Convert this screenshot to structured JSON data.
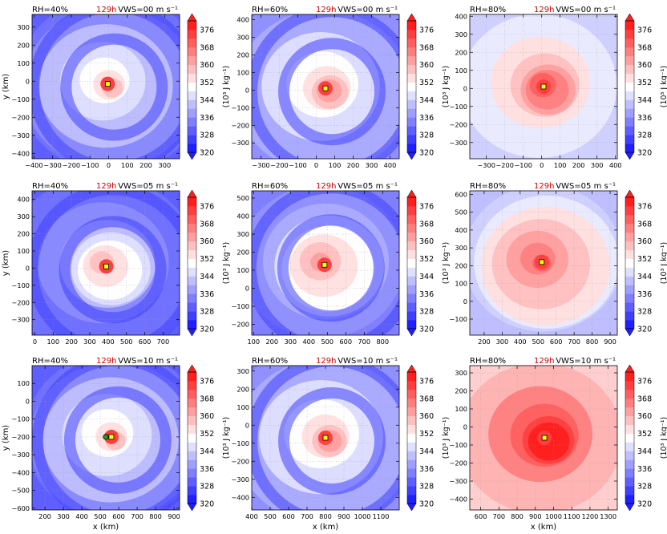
{
  "figure": {
    "time_label": "129h",
    "time_color": "#d40000",
    "colorbar": {
      "ticks": [
        "376",
        "368",
        "360",
        "352",
        "344",
        "336",
        "328",
        "320"
      ],
      "label": "(10³ J kg⁻¹)",
      "range": [
        320,
        380
      ],
      "levels": [
        320,
        324,
        328,
        332,
        336,
        340,
        344,
        348,
        352,
        356,
        360,
        364,
        368,
        372,
        376,
        380
      ]
    },
    "xlabel": "x (km)",
    "ylabel": "y (km)"
  },
  "chart_data": [
    {
      "type": "heatmap",
      "rh": "RH=40%",
      "vws": "VWS=00 m s⁻¹",
      "xlim": [
        -410,
        380
      ],
      "ylim": [
        -430,
        370
      ],
      "xticks": [
        "−400",
        "−300",
        "−200",
        "−100",
        "0",
        "100",
        "200",
        "300"
      ],
      "xtick_vals": [
        -400,
        -300,
        -200,
        -100,
        0,
        100,
        200,
        300
      ],
      "yticks": [
        "300",
        "200",
        "100",
        "0",
        "−100",
        "−200",
        "−300",
        "−400"
      ],
      "ytick_vals": [
        300,
        200,
        100,
        0,
        -100,
        -200,
        -300,
        -400
      ],
      "center": [
        -5,
        -15
      ],
      "center2": null,
      "bg": "blue"
    },
    {
      "type": "heatmap",
      "rh": "RH=60%",
      "vws": "VWS=00 m s⁻¹",
      "xlim": [
        -350,
        450
      ],
      "ylim": [
        -390,
        430
      ],
      "xticks": [
        "−300",
        "−200",
        "−100",
        "0",
        "100",
        "200",
        "300",
        "400"
      ],
      "xtick_vals": [
        -300,
        -200,
        -100,
        0,
        100,
        200,
        300,
        400
      ],
      "yticks": [
        "400",
        "300",
        "200",
        "100",
        "0",
        "−100",
        "−200",
        "−300"
      ],
      "ytick_vals": [
        400,
        300,
        200,
        100,
        0,
        -100,
        -200,
        -300
      ],
      "center": [
        50,
        10
      ],
      "center2": null,
      "bg": "mid"
    },
    {
      "type": "heatmap",
      "rh": "RH=80%",
      "vws": "VWS=00 m s⁻¹",
      "xlim": [
        -390,
        410
      ],
      "ylim": [
        -390,
        410
      ],
      "xticks": [
        "−300",
        "−200",
        "−100",
        "0",
        "100",
        "200",
        "300",
        "400"
      ],
      "xtick_vals": [
        -300,
        -200,
        -100,
        0,
        100,
        200,
        300,
        400
      ],
      "yticks": [
        "400",
        "300",
        "200",
        "100",
        "0",
        "−100",
        "−200",
        "−300"
      ],
      "ytick_vals": [
        400,
        300,
        200,
        100,
        0,
        -100,
        -200,
        -300
      ],
      "center": [
        10,
        10
      ],
      "center2": null,
      "bg": "light"
    },
    {
      "type": "heatmap",
      "rh": "RH=40%",
      "vws": "VWS=05 m s⁻¹",
      "xlim": [
        -15,
        790
      ],
      "ylim": [
        -390,
        450
      ],
      "xticks": [
        "0",
        "100",
        "200",
        "300",
        "400",
        "500",
        "600",
        "700"
      ],
      "xtick_vals": [
        0,
        100,
        200,
        300,
        400,
        500,
        600,
        700
      ],
      "yticks": [
        "400",
        "300",
        "200",
        "100",
        "0",
        "−100",
        "−200",
        "−300"
      ],
      "ytick_vals": [
        400,
        300,
        200,
        100,
        0,
        -100,
        -200,
        -300
      ],
      "center": [
        390,
        10
      ],
      "center2": null,
      "bg": "blue"
    },
    {
      "type": "heatmap",
      "rh": "RH=60%",
      "vws": "VWS=05 m s⁻¹",
      "xlim": [
        90,
        890
      ],
      "ylim": [
        -260,
        540
      ],
      "xticks": [
        "100",
        "200",
        "300",
        "400",
        "500",
        "600",
        "700",
        "800"
      ],
      "xtick_vals": [
        100,
        200,
        300,
        400,
        500,
        600,
        700,
        800
      ],
      "yticks": [
        "500",
        "400",
        "300",
        "200",
        "100",
        "0",
        "−100",
        "−200"
      ],
      "ytick_vals": [
        500,
        400,
        300,
        200,
        100,
        0,
        -100,
        -200
      ],
      "center": [
        485,
        130
      ],
      "center2": null,
      "bg": "mid"
    },
    {
      "type": "heatmap",
      "rh": "RH=80%",
      "vws": "VWS=05 m s⁻¹",
      "xlim": [
        120,
        940
      ],
      "ylim": [
        -190,
        620
      ],
      "xticks": [
        "200",
        "300",
        "400",
        "500",
        "600",
        "700",
        "800",
        "900"
      ],
      "xtick_vals": [
        200,
        300,
        400,
        500,
        600,
        700,
        800,
        900
      ],
      "yticks": [
        "600",
        "500",
        "400",
        "300",
        "200",
        "100",
        "0",
        "−100"
      ],
      "ytick_vals": [
        600,
        500,
        400,
        300,
        200,
        100,
        0,
        -100
      ],
      "center": [
        520,
        220
      ],
      "center2": null,
      "bg": "light"
    },
    {
      "type": "heatmap",
      "rh": "RH=40%",
      "vws": "VWS=10 m s⁻¹",
      "xlim": [
        130,
        930
      ],
      "ylim": [
        -610,
        200
      ],
      "xticks": [
        "200",
        "300",
        "400",
        "500",
        "600",
        "700",
        "800",
        "900"
      ],
      "xtick_vals": [
        200,
        300,
        400,
        500,
        600,
        700,
        800,
        900
      ],
      "yticks": [
        "100",
        "0",
        "−100",
        "−200",
        "−300",
        "−400",
        "−500",
        "−600"
      ],
      "ytick_vals": [
        100,
        0,
        -100,
        -200,
        -300,
        -400,
        -500,
        -600
      ],
      "center": [
        560,
        -200
      ],
      "center2": [
        530,
        -200
      ],
      "bg": "blue"
    },
    {
      "type": "heatmap",
      "rh": "RH=60%",
      "vws": "VWS=10 m s⁻¹",
      "xlim": [
        400,
        1200
      ],
      "ylim": [
        -470,
        330
      ],
      "xticks": [
        "400",
        "500",
        "600",
        "700",
        "800",
        "900",
        "1000",
        "1100"
      ],
      "xtick_vals": [
        400,
        500,
        600,
        700,
        800,
        900,
        1000,
        1100
      ],
      "yticks": [
        "300",
        "200",
        "100",
        "0",
        "−100",
        "−200",
        "−300",
        "−400"
      ],
      "ytick_vals": [
        300,
        200,
        100,
        0,
        -100,
        -200,
        -300,
        -400
      ],
      "center": [
        800,
        -70
      ],
      "center2": null,
      "bg": "mid"
    },
    {
      "type": "heatmap",
      "rh": "RH=80%",
      "vws": "VWS=10 m s⁻¹",
      "xlim": [
        540,
        1350
      ],
      "ylim": [
        -460,
        340
      ],
      "xticks": [
        "600",
        "700",
        "800",
        "900",
        "1000",
        "1100",
        "1200",
        "1300"
      ],
      "xtick_vals": [
        600,
        700,
        800,
        900,
        1000,
        1100,
        1200,
        1300
      ],
      "yticks": [
        "300",
        "200",
        "100",
        "0",
        "−100",
        "−200",
        "−300",
        "−400"
      ],
      "ytick_vals": [
        300,
        200,
        100,
        0,
        -100,
        -200,
        -300,
        -400
      ],
      "center": [
        950,
        -60
      ],
      "center2": null,
      "bg": "pink"
    }
  ]
}
